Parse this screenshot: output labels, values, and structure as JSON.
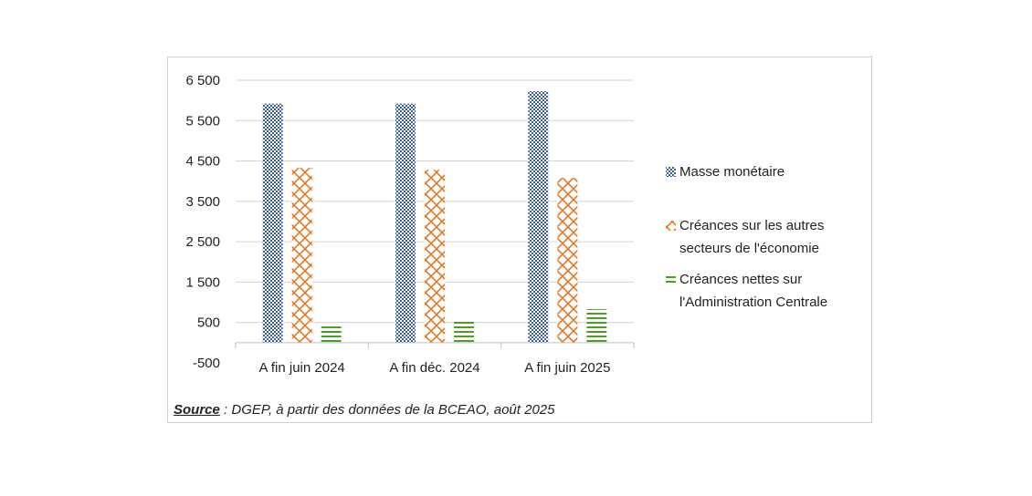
{
  "source": {
    "label": "Source",
    "text": " : DGEP, à partir des données de la BCEAO, août 2025"
  },
  "colors": {
    "masse": "#3a5ea8",
    "creances_economie": "#e07a2a",
    "creances_admin": "#4e9a2e",
    "grid": "#d0d0d0"
  },
  "chart_data": {
    "type": "bar",
    "categories": [
      "A fin juin 2024",
      "A fin déc. 2024",
      "A fin juin 2025"
    ],
    "series": [
      {
        "name": "Masse monétaire",
        "values": [
          5920,
          5920,
          6230
        ],
        "pattern": "dotted-grid",
        "color_key": "masse"
      },
      {
        "name": "Créances sur les autres secteurs de l'économie",
        "values": [
          4330,
          4280,
          4080
        ],
        "pattern": "cross-hatch",
        "color_key": "creances_economie"
      },
      {
        "name": "Créances nettes sur l'Administration Centrale",
        "values": [
          420,
          580,
          830
        ],
        "pattern": "horizontal-lines",
        "color_key": "creances_admin"
      }
    ],
    "legend_labels": [
      [
        "Masse monétaire"
      ],
      [
        "Créances sur les autres",
        "secteurs de l'économie"
      ],
      [
        "Créances nettes sur",
        "l'Administration Centrale"
      ]
    ],
    "yticks": [
      "6 500",
      "5 500",
      "4 500",
      "3 500",
      "2 500",
      "1 500",
      "500",
      "-500"
    ],
    "ytick_values": [
      6500,
      5500,
      4500,
      3500,
      2500,
      1500,
      500,
      -500
    ],
    "ylim": [
      -500,
      6500
    ],
    "grid": true,
    "legend_position": "right"
  }
}
